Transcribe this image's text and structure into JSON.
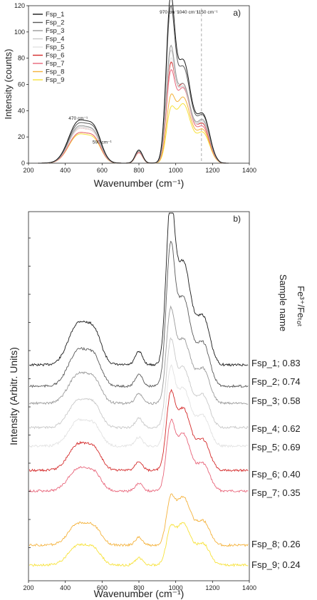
{
  "chart_data": [
    {
      "panel": "a)",
      "type": "line",
      "xlabel": "Wavenumber (cm⁻¹)",
      "ylabel": "Intensity (counts)",
      "xlim": [
        200,
        1400
      ],
      "ylim": [
        0,
        120
      ],
      "xticks": [
        200,
        400,
        600,
        800,
        1000,
        1200,
        1400
      ],
      "yticks": [
        0,
        20,
        40,
        60,
        80,
        100,
        120
      ],
      "legend_position": "top-left",
      "vline": 1140,
      "annotations": [
        {
          "text": "470 cm⁻¹",
          "x": 470,
          "y": 33
        },
        {
          "text": "590 cm⁻¹",
          "x": 600,
          "y": 15
        },
        {
          "text": "970 cm⁻¹",
          "x": 965,
          "y": 114
        },
        {
          "text": "1040 cm⁻¹",
          "x": 1065,
          "y": 114
        },
        {
          "text": "1150 cm⁻¹",
          "x": 1170,
          "y": 114
        }
      ],
      "series": [
        {
          "name": "Fsp_1",
          "color": "#1a1a1a",
          "peaks": [
            31,
            10,
            107,
            78,
            35,
            21
          ]
        },
        {
          "name": "Fsp_2",
          "color": "#5a5a5a",
          "peaks": [
            29,
            10,
            100,
            73,
            34,
            20
          ]
        },
        {
          "name": "Fsp_3",
          "color": "#9a9a9a",
          "peaks": [
            27,
            9,
            73,
            60,
            31,
            18
          ]
        },
        {
          "name": "Fsp_4",
          "color": "#c8c8c8",
          "peaks": [
            26,
            9,
            70,
            58,
            30,
            18
          ]
        },
        {
          "name": "Fsp_5",
          "color": "#e2e2e2",
          "peaks": [
            25,
            9,
            64,
            58,
            29,
            17
          ]
        },
        {
          "name": "Fsp_6",
          "color": "#d42a2a",
          "peaks": [
            25,
            9,
            60,
            60,
            28,
            17
          ]
        },
        {
          "name": "Fsp_7",
          "color": "#e8657a",
          "peaks": [
            22,
            8,
            55,
            57,
            26,
            15
          ]
        },
        {
          "name": "Fsp_8",
          "color": "#f4b23c",
          "peaks": [
            22,
            8,
            38,
            50,
            24,
            15
          ]
        },
        {
          "name": "Fsp_9",
          "color": "#f7e23a",
          "peaks": [
            21,
            8,
            30,
            45,
            22,
            14
          ]
        }
      ]
    },
    {
      "panel": "b)",
      "type": "line",
      "xlabel": "Wavenumber (cm⁻¹)",
      "ylabel": "Intensity (Arbitr. Units)",
      "xlim": [
        200,
        1400
      ],
      "xticks": [
        200,
        400,
        600,
        800,
        1000,
        1200,
        1400
      ],
      "side_header_1": "Sample name",
      "side_header_2": "Fe³⁺/Feₜₒₜ",
      "series": [
        {
          "name": "Fsp_1",
          "label": "Fsp_1; 0.83",
          "color": "#1a1a1a"
        },
        {
          "name": "Fsp_2",
          "label": "Fsp_2; 0.74",
          "color": "#5a5a5a"
        },
        {
          "name": "Fsp_3",
          "label": "Fsp_3; 0.58",
          "color": "#9a9a9a"
        },
        {
          "name": "Fsp_4",
          "label": "Fsp_4; 0.62",
          "color": "#c8c8c8"
        },
        {
          "name": "Fsp_5",
          "label": "Fsp_5; 0.69",
          "color": "#e2e2e2"
        },
        {
          "name": "Fsp_6",
          "label": "Fsp_6; 0.40",
          "color": "#d42a2a"
        },
        {
          "name": "Fsp_7",
          "label": "Fsp_7; 0.35",
          "color": "#e8657a"
        },
        {
          "name": "Fsp_8",
          "label": "Fsp_8; 0.26",
          "color": "#f4b23c"
        },
        {
          "name": "Fsp_9",
          "label": "Fsp_9; 0.24",
          "color": "#f7e23a"
        }
      ]
    }
  ]
}
